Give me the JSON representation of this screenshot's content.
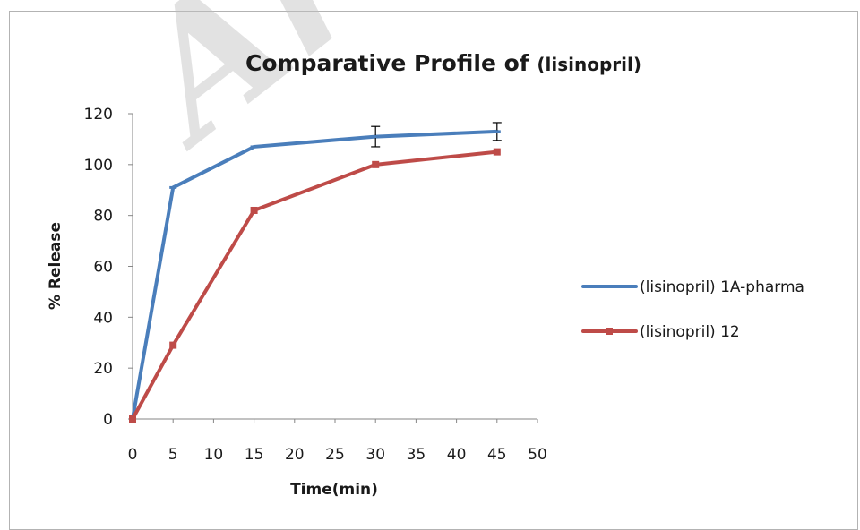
{
  "watermark_text": "Archi",
  "chart_data": {
    "type": "line",
    "title": "Comparative Profile of",
    "title_suffix": "(lisinopril)",
    "xlabel": "Time(min)",
    "ylabel": "% Release",
    "xlim": [
      0,
      50
    ],
    "ylim": [
      0,
      120
    ],
    "x_ticks": [
      0,
      5,
      10,
      15,
      20,
      25,
      30,
      35,
      40,
      45,
      50
    ],
    "y_ticks": [
      0,
      20,
      40,
      60,
      80,
      100,
      120
    ],
    "grid": false,
    "legend_position": "right",
    "series": [
      {
        "name": "(lisinopril) 1A-pharma",
        "color": "#4a7ebb",
        "marker": "dash",
        "x": [
          0,
          5,
          15,
          30,
          45
        ],
        "y": [
          0,
          91,
          107,
          111,
          113
        ],
        "error": [
          0,
          0,
          0,
          4,
          3.5
        ]
      },
      {
        "name": "(lisinopril) 12",
        "color": "#be4b48",
        "marker": "square",
        "x": [
          0,
          5,
          15,
          30,
          45
        ],
        "y": [
          0,
          29,
          82,
          100,
          105
        ],
        "error": [
          0,
          0,
          0,
          0,
          0
        ]
      }
    ]
  }
}
